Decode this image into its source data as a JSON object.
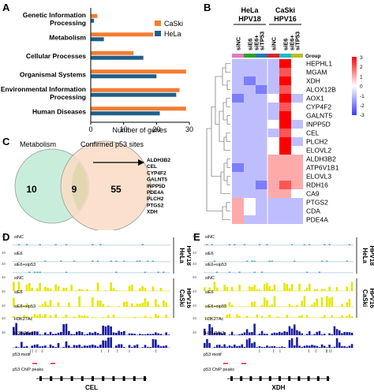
{
  "panels": {
    "a": "A",
    "b": "B",
    "c": "C",
    "d": "D",
    "e": "E"
  },
  "chart_a": {
    "type": "bar",
    "xlabel": "Number of genes",
    "xlim": [
      0,
      30
    ],
    "xticks": [
      "0",
      "10",
      "20",
      "30"
    ],
    "categories": [
      [
        "Genetic Information",
        "Processing"
      ],
      [
        "Metabolism"
      ],
      [
        "Cellular Processes"
      ],
      [
        "Organismal Systems"
      ],
      [
        "Environmental Information",
        "Processing"
      ],
      [
        "Human Diseases"
      ]
    ],
    "series": [
      {
        "name": "CaSki",
        "color": "#f47c30",
        "values": [
          2,
          19,
          13,
          29,
          27,
          29
        ]
      },
      {
        "name": "HeLa",
        "color": "#1f5f8b",
        "values": [
          1,
          4,
          16,
          20,
          26,
          21
        ]
      }
    ]
  },
  "heatmap_b": {
    "cell_lines": [
      {
        "name": "HeLa",
        "sub": "HPV18"
      },
      {
        "name": "CaSki",
        "sub": "HPV16"
      }
    ],
    "conditions": [
      "siNC",
      "siE6",
      "siE6+ siTP53",
      "siNC",
      "siE6",
      "siE6+ siTP53"
    ],
    "group_label": "Group",
    "group_colors": [
      "#e377c2",
      "#2ca02c",
      "#1f77b4",
      "#d62728",
      "#17becf",
      "#bcbd22"
    ],
    "genes": [
      "HEPHL1",
      "MGAM",
      "XDH",
      "ALOX12B",
      "AOX1",
      "CYP4F2",
      "GALNT5",
      "INPP5D",
      "CEL",
      "PLCH2",
      "ELOVL2",
      "ALDH3B2",
      "ATP6V1B1",
      "ELOVL3",
      "RDH16",
      "CA9",
      "PTGS2",
      "CDA",
      "PDE4A"
    ],
    "scale_ticks": [
      "3",
      "2",
      "1",
      "0",
      "-1",
      "-2",
      "-3"
    ],
    "values": [
      [
        -1,
        -1,
        -1,
        -1,
        3,
        0
      ],
      [
        -1,
        -1,
        -1,
        -1,
        2,
        0
      ],
      [
        -1,
        -2,
        -1,
        -1,
        3,
        0
      ],
      [
        -1,
        -1,
        -2,
        -1,
        2,
        0
      ],
      [
        -2,
        -1,
        -1,
        0,
        3,
        -1
      ],
      [
        -1,
        -1,
        -1,
        -1,
        2,
        0
      ],
      [
        -1,
        -1,
        -1,
        -1,
        3,
        0
      ],
      [
        -1,
        -1,
        -1,
        0,
        3,
        -1
      ],
      [
        -1,
        -1,
        -1,
        -1,
        2,
        0
      ],
      [
        -1,
        -1,
        -1,
        0,
        3,
        -1
      ],
      [
        -1,
        -1,
        -1,
        0,
        3,
        0
      ],
      [
        -1,
        -1,
        -1,
        1,
        1,
        1
      ],
      [
        -2,
        -1,
        -1,
        1,
        1,
        1
      ],
      [
        -1,
        -1,
        -1,
        1,
        1,
        1
      ],
      [
        -1,
        -1,
        -2,
        1,
        2,
        1
      ],
      [
        -1,
        -1,
        -1,
        1,
        1,
        0
      ],
      [
        1,
        0,
        -1,
        -1,
        -1,
        -1
      ],
      [
        1,
        0,
        -1,
        -1,
        -1,
        -1
      ],
      [
        1,
        -1,
        -1,
        -1,
        -1,
        -1
      ]
    ]
  },
  "venn_c": {
    "left_label": "Metabolism",
    "right_label": "Confirmed p53 sites",
    "left_only": "10",
    "overlap": "9",
    "right_only": "55",
    "overlap_genes": [
      "ALDH3B2",
      "CEL",
      "CYP4F2",
      "GALNT5",
      "INPP5D",
      "PDE4A",
      "PLCH2",
      "PTGS2",
      "XDH"
    ]
  },
  "track_d": {
    "gene": "CEL",
    "tracks": [
      "siNC",
      "siE6",
      "siE6+sip53",
      "siNC",
      "siE6",
      "siE6+sip53",
      "H3K27Ac",
      "H3K4Me3"
    ],
    "scale": "40",
    "motif_label": "p53 motif",
    "chip_label": "p53 ChIP peaks",
    "hela_label": [
      "HeLa",
      "HPV18"
    ],
    "caski_label": [
      "CaSki",
      "HPV16"
    ]
  },
  "track_e": {
    "gene": "XDH",
    "tracks": [
      "siNC",
      "siE6",
      "siE6+sip53",
      "siNC",
      "siE6",
      "siE6+sip53",
      "H3K27Ac",
      "H3K4Me3"
    ],
    "scale": "40",
    "motif_label": "p53 motif",
    "chip_label": "p53 ChIP peaks",
    "hela_label": [
      "HeLa",
      "HPV18"
    ],
    "caski_label": [
      "CaSki",
      "HPV16"
    ]
  }
}
